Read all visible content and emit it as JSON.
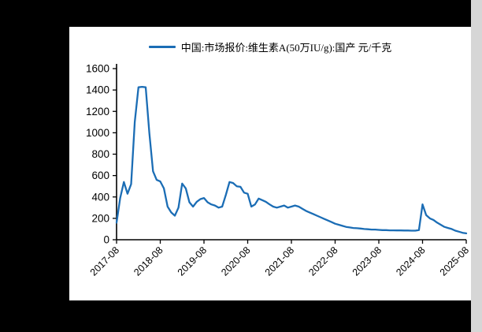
{
  "page": {
    "background_color": "#000000",
    "panel_color": "#ffffff",
    "gutter_color": "#d6d6d6"
  },
  "chart_data": {
    "type": "line",
    "title": "",
    "legend_position": "top",
    "grid": false,
    "unit": "元/千克",
    "legend": [
      {
        "label": "中国:市场报价:维生素A(50万IU/g):国产 元/千克",
        "color": "#1b6db5"
      }
    ],
    "ylim": [
      0,
      1600
    ],
    "y_ticks": [
      0,
      200,
      400,
      600,
      800,
      1000,
      1200,
      1400,
      1600
    ],
    "x_tick_labels": [
      "2017-08",
      "2018-08",
      "2019-08",
      "2020-08",
      "2021-08",
      "2022-08",
      "2023-08",
      "2024-08",
      "2025-08"
    ],
    "x": [
      "2017-08",
      "2017-09",
      "2017-10",
      "2017-11",
      "2017-12",
      "2018-01",
      "2018-02",
      "2018-03",
      "2018-04",
      "2018-05",
      "2018-06",
      "2018-07",
      "2018-08",
      "2018-09",
      "2018-10",
      "2018-11",
      "2018-12",
      "2019-01",
      "2019-02",
      "2019-03",
      "2019-04",
      "2019-05",
      "2019-06",
      "2019-07",
      "2019-08",
      "2019-09",
      "2019-10",
      "2019-11",
      "2019-12",
      "2020-01",
      "2020-02",
      "2020-03",
      "2020-04",
      "2020-05",
      "2020-06",
      "2020-07",
      "2020-08",
      "2020-09",
      "2020-10",
      "2020-11",
      "2020-12",
      "2021-01",
      "2021-02",
      "2021-03",
      "2021-04",
      "2021-05",
      "2021-06",
      "2021-07",
      "2021-08",
      "2021-09",
      "2021-10",
      "2021-11",
      "2021-12",
      "2022-01",
      "2022-02",
      "2022-03",
      "2022-04",
      "2022-05",
      "2022-06",
      "2022-07",
      "2022-08",
      "2022-09",
      "2022-10",
      "2022-11",
      "2022-12",
      "2023-01",
      "2023-02",
      "2023-03",
      "2023-04",
      "2023-05",
      "2023-06",
      "2023-07",
      "2023-08",
      "2023-09",
      "2023-10",
      "2023-11",
      "2023-12",
      "2024-01",
      "2024-02",
      "2024-03",
      "2024-04",
      "2024-05",
      "2024-06",
      "2024-07",
      "2024-08",
      "2024-09",
      "2024-10",
      "2024-11",
      "2024-12",
      "2025-01",
      "2025-02",
      "2025-03",
      "2025-04",
      "2025-05",
      "2025-06",
      "2025-07",
      "2025-08"
    ],
    "series": [
      {
        "name": "中国:市场报价:维生素A(50万IU/g):国产",
        "color": "#1b6db5",
        "values": [
          160,
          390,
          540,
          430,
          520,
          1100,
          1425,
          1430,
          1425,
          1000,
          640,
          560,
          545,
          480,
          310,
          255,
          225,
          300,
          525,
          480,
          350,
          310,
          355,
          380,
          390,
          350,
          330,
          320,
          300,
          310,
          420,
          540,
          530,
          500,
          495,
          440,
          430,
          310,
          330,
          385,
          370,
          355,
          330,
          310,
          300,
          310,
          320,
          300,
          310,
          320,
          310,
          290,
          270,
          255,
          240,
          225,
          210,
          195,
          180,
          165,
          150,
          140,
          130,
          120,
          115,
          110,
          108,
          105,
          100,
          98,
          95,
          95,
          92,
          90,
          90,
          88,
          88,
          87,
          87,
          86,
          86,
          85,
          85,
          90,
          330,
          230,
          200,
          185,
          160,
          140,
          120,
          110,
          100,
          85,
          75,
          65,
          60
        ]
      }
    ]
  }
}
